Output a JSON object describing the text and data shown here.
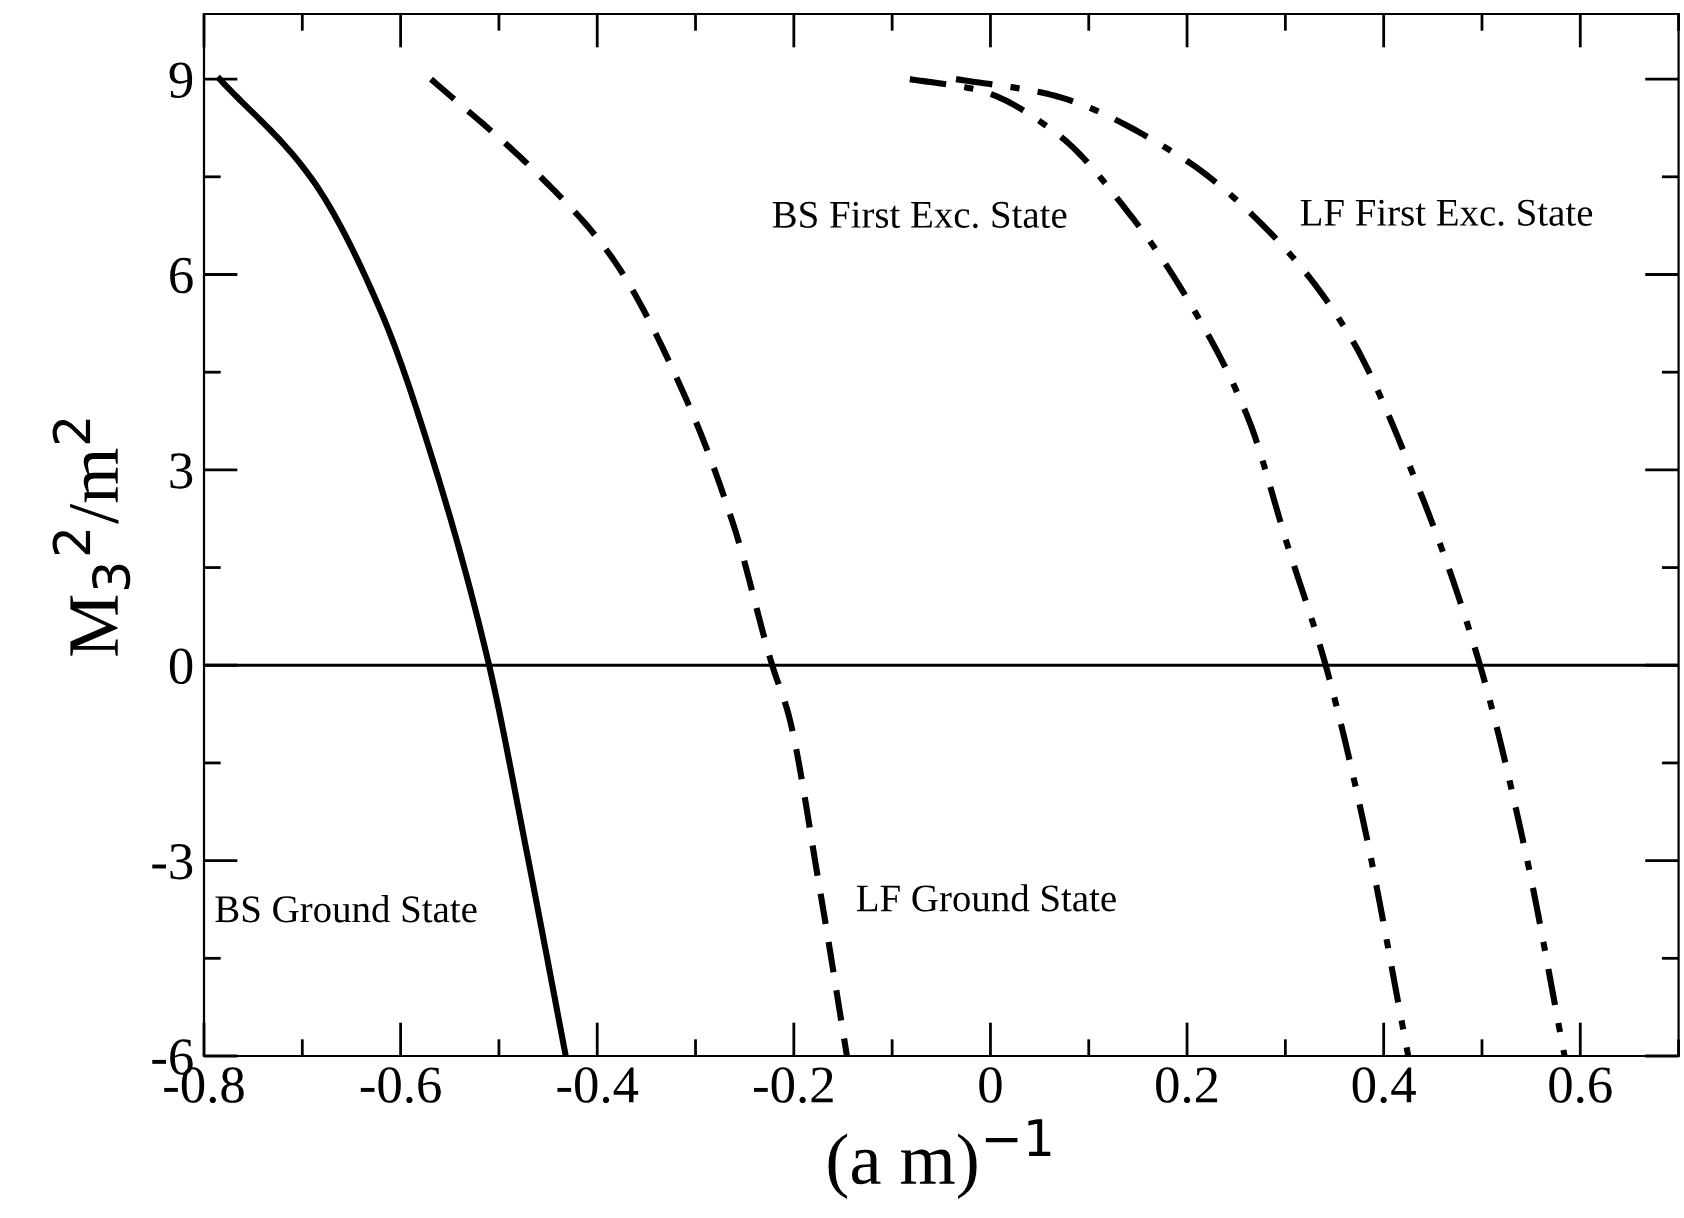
{
  "chart_data": {
    "type": "line",
    "xlabel": "(a m)$^{−1}$",
    "ylabel": "M$_{3}$$^{2}$/m$^{2}$",
    "xlim": [
      -0.8,
      0.7
    ],
    "ylim": [
      -6,
      10
    ],
    "xticks": [
      -0.8,
      -0.6,
      -0.4,
      -0.2,
      0,
      0.2,
      0.4,
      0.6
    ],
    "yticks": [
      -6,
      -3,
      0,
      3,
      6,
      9
    ],
    "grid": false,
    "legend": false,
    "marker": "none",
    "ref_lines": [
      {
        "axis": "y",
        "value": 0,
        "color": "#000000",
        "line_style": "solid"
      }
    ],
    "series": [
      {
        "color": "#000000",
        "line_style": "solid",
        "x": [
          -0.784,
          -0.69,
          -0.62,
          -0.565,
          -0.51,
          -0.471,
          -0.432
        ],
        "values": [
          9,
          7.46,
          5.43,
          3.04,
          0,
          -2.92,
          -6
        ]
      },
      {
        "color": "#000000",
        "line_style": "dashed",
        "x": [
          -0.569,
          -0.463,
          -0.385,
          -0.307,
          -0.26,
          -0.222,
          -0.205,
          -0.174,
          -0.146
        ],
        "values": [
          9,
          7.58,
          6.26,
          4.0,
          2.09,
          0,
          -0.78,
          -3.4,
          -6
        ]
      },
      {
        "color": "#000000",
        "line_style": "dashdot",
        "x": [
          -0.082,
          -0.012,
          0.067,
          0.145,
          0.208,
          0.263,
          0.302,
          0.341,
          0.38,
          0.425
        ],
        "values": [
          9,
          8.83,
          8.17,
          6.86,
          5.43,
          3.76,
          1.85,
          0,
          -2.45,
          -6
        ]
      },
      {
        "color": "#000000",
        "line_style": "dashdot",
        "x": [
          -0.035,
          0.059,
          0.192,
          0.286,
          0.365,
          0.427,
          0.498,
          0.545,
          0.584
        ],
        "values": [
          9,
          8.77,
          7.82,
          6.62,
          5.07,
          3.04,
          0,
          -2.92,
          -6
        ]
      }
    ],
    "annotations": [
      "BS Ground State",
      "LF Ground State",
      "BS First Exc. State",
      "LF First Exc. State"
    ]
  }
}
